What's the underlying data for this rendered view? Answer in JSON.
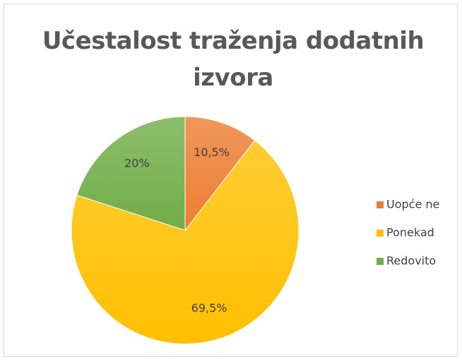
{
  "chart_data": {
    "type": "pie",
    "title": "Učestalost traženja dodatnih izvora",
    "categories": [
      "Uopće ne",
      "Ponekad",
      "Redovito"
    ],
    "values": [
      10.5,
      69.5,
      20
    ],
    "value_labels": [
      "10,5%",
      "69,5%",
      "20%"
    ],
    "colors": [
      "#ed7d31",
      "#ffc000",
      "#70ad47"
    ],
    "legend": "right"
  }
}
